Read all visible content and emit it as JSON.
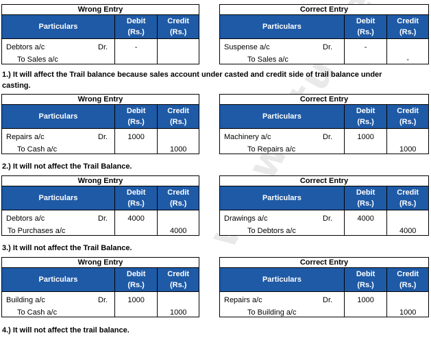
{
  "watermark": "www.studiestoday.com",
  "headers": {
    "particulars": "Particulars",
    "debit": "Debit",
    "credit": "Credit",
    "unit": "(Rs.)"
  },
  "blocks": [
    {
      "wrong": {
        "title": "Wrong Entry",
        "debit_acc": "Debtors a/c",
        "dr": "Dr.",
        "credit_acc": "To Sales a/c",
        "debit_val": "-",
        "credit_val": ""
      },
      "correct": {
        "title": "Correct  Entry",
        "debit_acc": "Suspense a/c",
        "dr": "Dr.",
        "credit_acc": "To Sales a/c",
        "debit_val": "-",
        "credit_val": "-"
      },
      "note_line1": "1.) It will affect the Trail balance  because sales account  under casted and credit side of trail balance  under",
      "note_line2": "casting."
    },
    {
      "wrong": {
        "title": "Wrong Entry",
        "debit_acc": "Repairs a/c",
        "dr": "Dr.",
        "credit_acc": "To Cash a/c",
        "debit_val": "1000",
        "credit_val": "1000"
      },
      "correct": {
        "title": "Correct  Entry",
        "debit_acc": "Machinery a/c",
        "dr": "Dr.",
        "credit_acc": "To Repairs a/c",
        "debit_val": "1000",
        "credit_val": "1000"
      },
      "note_line1": "2.)  It will not affect the Trail Balance."
    },
    {
      "wrong": {
        "title": "Wrong Entry",
        "debit_acc": "Debtors a/c",
        "dr": "Dr.",
        "credit_acc": "To Purchases a/c",
        "debit_val": "4000",
        "credit_val": "4000"
      },
      "correct": {
        "title": "Correct  Entry",
        "debit_acc": "Drawings a/c",
        "dr": "Dr.",
        "credit_acc": "To Debtors a/c",
        "debit_val": "4000",
        "credit_val": "4000"
      },
      "note_line1": "3.)  It will not affect the Trail Balance."
    },
    {
      "wrong": {
        "title": "Wrong Entry",
        "debit_acc": "Building a/c",
        "dr": "Dr.",
        "credit_acc": "To Cash a/c",
        "debit_val": "1000",
        "credit_val": "1000"
      },
      "correct": {
        "title": "Correct  Entry",
        "debit_acc": "Repairs a/c",
        "dr": "Dr.",
        "credit_acc": "To Building a/c",
        "debit_val": "1000",
        "credit_val": "1000"
      },
      "note_line1": "4.)  It will not affect the trail balance."
    }
  ]
}
